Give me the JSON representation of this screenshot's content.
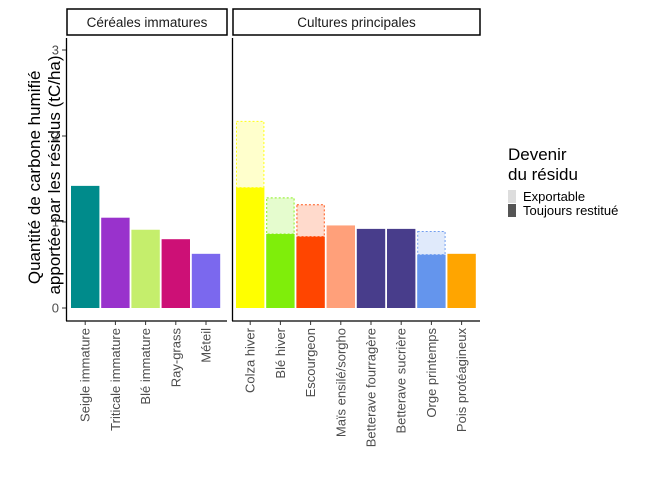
{
  "chart_data": {
    "type": "bar",
    "ylabel": "Quantité de carbone humifié apportée par les résidus (tC/ha)",
    "ylim": [
      0,
      3.1
    ],
    "yticks": [
      0,
      1,
      2,
      3
    ],
    "grid": false,
    "legend": {
      "title": "Devenir du résidu",
      "position": "right",
      "items": [
        {
          "label": "Exportable",
          "swatch_color": "#dddddd"
        },
        {
          "label": "Toujours restitué",
          "swatch_color": "#555555"
        }
      ]
    },
    "series": [
      {
        "name": "Toujours restitué"
      },
      {
        "name": "Exportable"
      }
    ],
    "panels": [
      {
        "title": "Céréales immatures",
        "categories": [
          {
            "name": "Seigle immature",
            "restitue": 1.42,
            "exportable": 0,
            "color": "#008b8b"
          },
          {
            "name": "Triticale immature",
            "restitue": 1.05,
            "exportable": 0,
            "color": "#9932cc"
          },
          {
            "name": "Blé immature",
            "restitue": 0.91,
            "exportable": 0,
            "color": "#c5ee6c"
          },
          {
            "name": "Ray-grass",
            "restitue": 0.8,
            "exportable": 0,
            "color": "#cd1076"
          },
          {
            "name": "Méteil",
            "restitue": 0.63,
            "exportable": 0,
            "color": "#7b68ee"
          }
        ]
      },
      {
        "title": "Cultures principales",
        "categories": [
          {
            "name": "Colza hiver",
            "restitue": 1.4,
            "exportable": 0.77,
            "color": "#ffff00"
          },
          {
            "name": "Blé hiver",
            "restitue": 0.86,
            "exportable": 0.42,
            "color": "#7fee0a"
          },
          {
            "name": "Escourgeon",
            "restitue": 0.83,
            "exportable": 0.37,
            "color": "#ff4500"
          },
          {
            "name": "Maïs ensilé/sorgho",
            "restitue": 0.96,
            "exportable": 0,
            "color": "#ffa07a"
          },
          {
            "name": "Betterave fourragère",
            "restitue": 0.92,
            "exportable": 0,
            "color": "#483d8b"
          },
          {
            "name": "Betterave sucrière",
            "restitue": 0.92,
            "exportable": 0,
            "color": "#483d8b"
          },
          {
            "name": "Orge printemps",
            "restitue": 0.62,
            "exportable": 0.27,
            "color": "#6495ed"
          },
          {
            "name": "Pois protéagineux",
            "restitue": 0.63,
            "exportable": 0,
            "color": "#ffa500"
          }
        ]
      }
    ]
  }
}
